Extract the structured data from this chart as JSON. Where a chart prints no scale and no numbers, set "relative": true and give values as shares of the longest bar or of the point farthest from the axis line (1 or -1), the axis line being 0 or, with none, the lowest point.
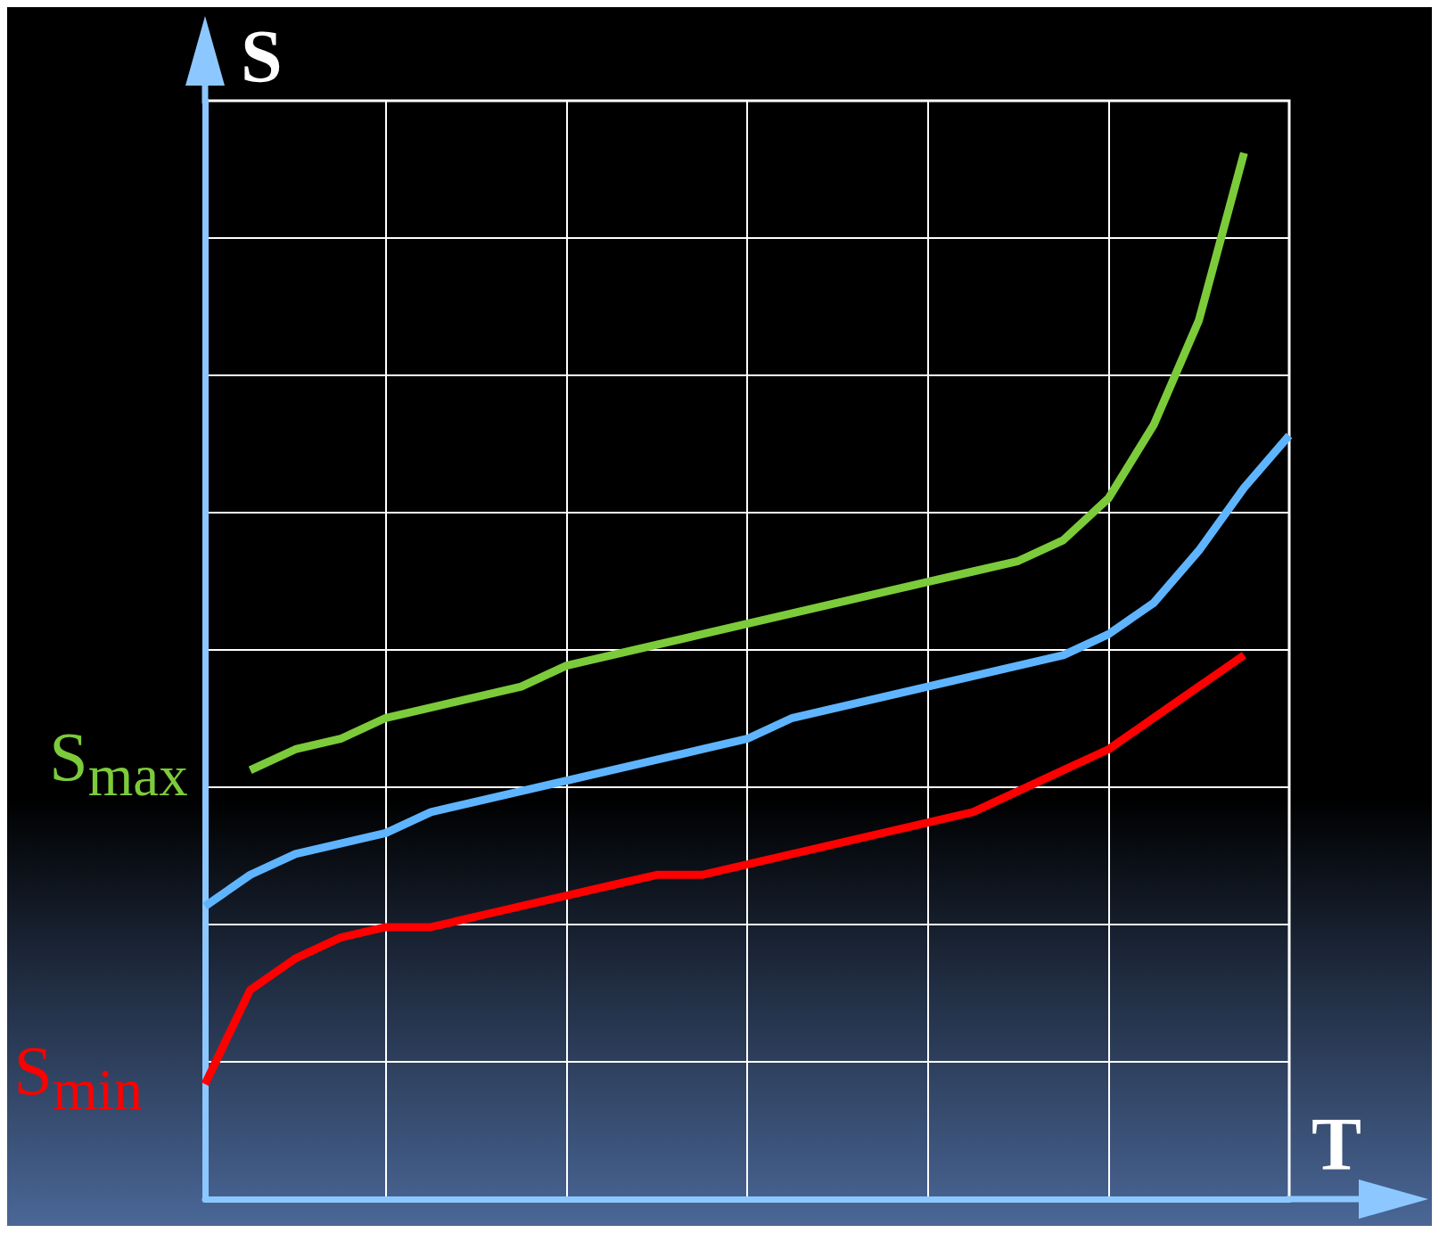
{
  "chart_data": {
    "type": "line",
    "relative": true,
    "xlabel": "T",
    "ylabel": "S",
    "grid": true,
    "legend": false,
    "marker": "none",
    "line_style": "solid",
    "categories": [
      null,
      null,
      null,
      null,
      null,
      null,
      null,
      null,
      null,
      null,
      null,
      null,
      null,
      null,
      null,
      null,
      null,
      null,
      null,
      null,
      null,
      null,
      null,
      null,
      null
    ],
    "series": [
      {
        "name": "S$_{max}$",
        "color": "#7ccb3a",
        "values": [
          null,
          0.41,
          0.43,
          0.44,
          0.46,
          0.47,
          0.48,
          0.49,
          0.51,
          0.52,
          0.53,
          0.54,
          0.55,
          0.56,
          0.57,
          0.58,
          0.59,
          0.6,
          0.61,
          0.63,
          0.67,
          0.74,
          0.84,
          1.0,
          null
        ]
      },
      {
        "color": "#5fb4ff",
        "values": [
          0.28,
          0.31,
          0.33,
          0.34,
          0.35,
          0.37,
          0.38,
          0.39,
          0.4,
          0.41,
          0.42,
          0.43,
          0.44,
          0.46,
          0.47,
          0.48,
          0.49,
          0.5,
          0.51,
          0.52,
          0.54,
          0.57,
          0.62,
          0.68,
          0.73
        ]
      },
      {
        "name": "S$_{min}$",
        "color": "#ff0000",
        "values": [
          0.11,
          0.2,
          0.23,
          0.25,
          0.26,
          0.26,
          0.27,
          0.28,
          0.29,
          0.3,
          0.31,
          0.31,
          0.32,
          0.33,
          0.34,
          0.35,
          0.36,
          0.37,
          0.39,
          0.41,
          0.43,
          0.46,
          0.49,
          0.52,
          null
        ]
      }
    ]
  }
}
